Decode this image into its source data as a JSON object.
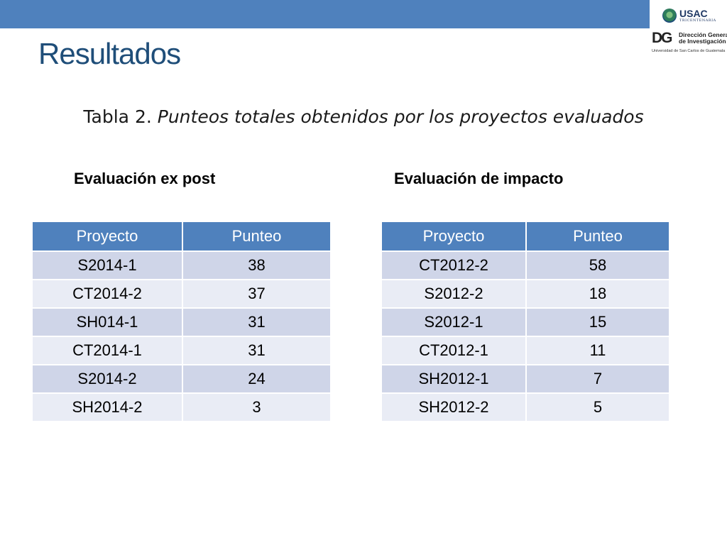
{
  "header": {
    "title": "Resultados",
    "logos": {
      "usac_name": "USAC",
      "usac_subtitle": "TRICENTENARIA",
      "usac_tagline": "Universidad de San Carlos de Guatemala",
      "dgi_mark": "DG",
      "dgi_line1": "Dirección General",
      "dgi_line2": "de Investigación",
      "dgi_university": "Universidad de San Carlos de Guatemala"
    }
  },
  "caption": {
    "prefix": "Tabla 2. ",
    "text": "Punteos totales obtenidos por los proyectos evaluados"
  },
  "colors": {
    "accent_blue": "#4f81bd",
    "title_blue": "#1f4e79",
    "row_dark": "#cfd5e8",
    "row_light": "#e9ecf5"
  },
  "ex_post": {
    "label": "Evaluación ex post",
    "headers": [
      "Proyecto",
      "Punteo"
    ],
    "rows": [
      [
        "S2014-1",
        "38"
      ],
      [
        "CT2014-2",
        "37"
      ],
      [
        "SH014-1",
        "31"
      ],
      [
        "CT2014-1",
        "31"
      ],
      [
        "S2014-2",
        "24"
      ],
      [
        "SH2014-2",
        "3"
      ]
    ]
  },
  "impacto": {
    "label": "Evaluación de impacto",
    "headers": [
      "Proyecto",
      "Punteo"
    ],
    "rows": [
      [
        "CT2012-2",
        "58"
      ],
      [
        "S2012-2",
        "18"
      ],
      [
        "S2012-1",
        "15"
      ],
      [
        "CT2012-1",
        "11"
      ],
      [
        "SH2012-1",
        "7"
      ],
      [
        "SH2012-2",
        "5"
      ]
    ]
  }
}
